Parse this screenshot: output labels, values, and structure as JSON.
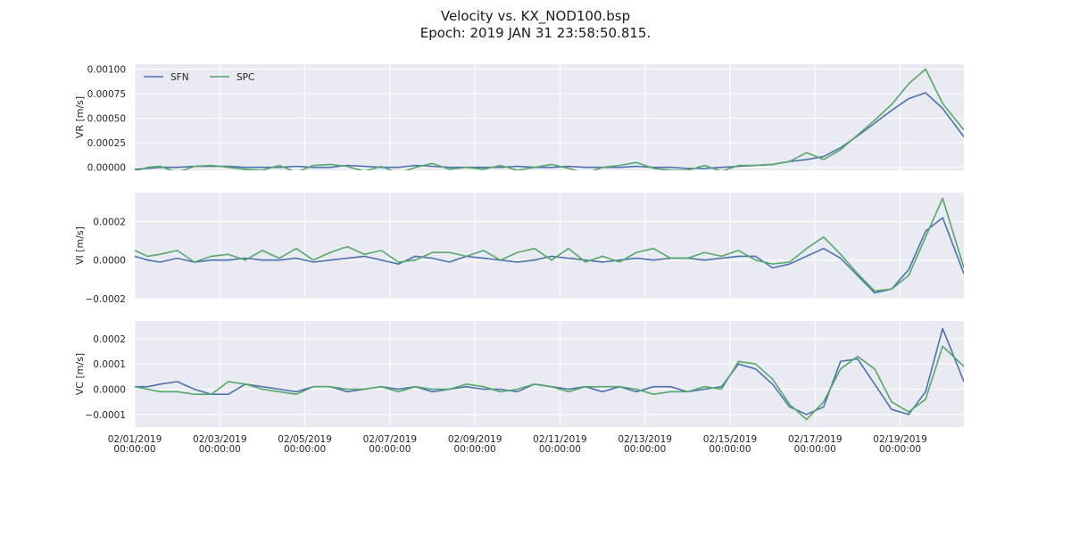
{
  "header": {
    "title": "Velocity vs. KX_NOD100.bsp",
    "subtitle": "Epoch: 2019 JAN 31 23:58:50.815."
  },
  "chart_data": {
    "type": "line",
    "x_unit": "day of February 2019",
    "x_range": [
      1,
      20.5
    ],
    "x_ticks": [
      {
        "x": 1,
        "date": "02/01/2019",
        "time": "00:00:00"
      },
      {
        "x": 3,
        "date": "02/03/2019",
        "time": "00:00:00"
      },
      {
        "x": 5,
        "date": "02/05/2019",
        "time": "00:00:00"
      },
      {
        "x": 7,
        "date": "02/07/2019",
        "time": "00:00:00"
      },
      {
        "x": 9,
        "date": "02/09/2019",
        "time": "00:00:00"
      },
      {
        "x": 11,
        "date": "02/11/2019",
        "time": "00:00:00"
      },
      {
        "x": 13,
        "date": "02/13/2019",
        "time": "00:00:00"
      },
      {
        "x": 15,
        "date": "02/15/2019",
        "time": "00:00:00"
      },
      {
        "x": 17,
        "date": "02/17/2019",
        "time": "00:00:00"
      },
      {
        "x": 19,
        "date": "02/19/2019",
        "time": "00:00:00"
      }
    ],
    "legend": {
      "placement": "upper-left",
      "entries": [
        "SFN",
        "SPC"
      ]
    },
    "grid": true,
    "background": "#eaeaf2",
    "series_colors": {
      "SFN": "#4c72b0",
      "SPC": "#55a868"
    },
    "panels": [
      {
        "ylabel": "VR [m/s]",
        "ylim": [
          -3e-05,
          0.00105
        ],
        "yticks": [
          {
            "v": 0.0,
            "label": "0.00000"
          },
          {
            "v": 0.00025,
            "label": "0.00025"
          },
          {
            "v": 0.0005,
            "label": "0.00050"
          },
          {
            "v": 0.00075,
            "label": "0.00075"
          },
          {
            "v": 0.001,
            "label": "0.00100"
          }
        ],
        "series": [
          {
            "name": "SFN",
            "x": [
              1,
              1.3,
              1.6,
              2,
              2.4,
              2.8,
              3.2,
              3.6,
              4,
              4.4,
              4.8,
              5.2,
              5.6,
              6,
              6.4,
              6.8,
              7.2,
              7.6,
              8,
              8.4,
              8.8,
              9.2,
              9.6,
              10,
              10.4,
              10.8,
              11.2,
              11.6,
              12,
              12.4,
              12.8,
              13.2,
              13.6,
              14,
              14.4,
              14.8,
              15.2,
              15.6,
              16,
              16.4,
              16.8,
              17.2,
              17.6,
              18,
              18.4,
              18.8,
              19.2,
              19.6,
              20,
              20.5
            ],
            "y": [
              -2e-05,
              -1e-05,
              0.0,
              0.0,
              1e-05,
              1e-05,
              1e-05,
              0.0,
              0.0,
              0.0,
              1e-05,
              0.0,
              0.0,
              2e-05,
              1e-05,
              0.0,
              0.0,
              2e-05,
              1e-05,
              0.0,
              0.0,
              0.0,
              0.0,
              1e-05,
              0.0,
              0.0,
              1e-05,
              0.0,
              0.0,
              0.0,
              1e-05,
              0.0,
              0.0,
              -1e-05,
              -1e-05,
              0.0,
              1e-05,
              2e-05,
              3e-05,
              6e-05,
              8e-05,
              0.00011,
              0.0002,
              0.00032,
              0.00045,
              0.00058,
              0.0007,
              0.00076,
              0.0006,
              0.00031
            ]
          },
          {
            "name": "SPC",
            "x": [
              1,
              1.3,
              1.6,
              2,
              2.4,
              2.8,
              3.2,
              3.6,
              4,
              4.4,
              4.8,
              5.2,
              5.6,
              6,
              6.4,
              6.8,
              7.2,
              7.6,
              8,
              8.4,
              8.8,
              9.2,
              9.6,
              10,
              10.4,
              10.8,
              11.2,
              11.6,
              12,
              12.4,
              12.8,
              13.2,
              13.6,
              14,
              14.4,
              14.8,
              15.2,
              15.6,
              16,
              16.4,
              16.8,
              17.2,
              17.6,
              18,
              18.4,
              18.8,
              19.2,
              19.6,
              20,
              20.5
            ],
            "y": [
              -4e-05,
              0.0,
              1e-05,
              -5e-05,
              1e-05,
              2e-05,
              0.0,
              -2e-05,
              -3e-05,
              2e-05,
              -5e-05,
              2e-05,
              3e-05,
              1e-05,
              -4e-05,
              1e-05,
              -6e-05,
              0.0,
              4e-05,
              -2e-05,
              0.0,
              -2e-05,
              2e-05,
              -3e-05,
              0.0,
              3e-05,
              -1e-05,
              -6e-05,
              0.0,
              2e-05,
              5e-05,
              -1e-05,
              -3e-05,
              -3e-05,
              2e-05,
              -4e-05,
              2e-05,
              2e-05,
              3e-05,
              6e-05,
              0.00015,
              8e-05,
              0.00018,
              0.00033,
              0.00048,
              0.00064,
              0.00085,
              0.001,
              0.00065,
              0.00038
            ]
          }
        ]
      },
      {
        "ylabel": "VI [m/s]",
        "ylim": [
          -0.0002,
          0.00035
        ],
        "yticks": [
          {
            "v": -0.0002,
            "label": "−0.0002"
          },
          {
            "v": 0.0,
            "label": "0.0000"
          },
          {
            "v": 0.0002,
            "label": "0.0002"
          }
        ],
        "series": [
          {
            "name": "SFN",
            "x": [
              1,
              1.3,
              1.6,
              2,
              2.4,
              2.8,
              3.2,
              3.6,
              4,
              4.4,
              4.8,
              5.2,
              5.6,
              6,
              6.4,
              6.8,
              7.2,
              7.6,
              8,
              8.4,
              8.8,
              9.2,
              9.6,
              10,
              10.4,
              10.8,
              11.2,
              11.6,
              12,
              12.4,
              12.8,
              13.2,
              13.6,
              14,
              14.4,
              14.8,
              15.2,
              15.6,
              16,
              16.4,
              16.8,
              17.2,
              17.6,
              18,
              18.4,
              18.8,
              19.2,
              19.6,
              20,
              20.5
            ],
            "y": [
              2e-05,
              0.0,
              -1e-05,
              1e-05,
              -1e-05,
              0.0,
              0.0,
              1e-05,
              0.0,
              0.0,
              1e-05,
              -1e-05,
              0.0,
              1e-05,
              2e-05,
              0.0,
              -2e-05,
              2e-05,
              1e-05,
              -1e-05,
              2e-05,
              1e-05,
              0.0,
              -1e-05,
              0.0,
              2e-05,
              1e-05,
              0.0,
              -1e-05,
              0.0,
              1e-05,
              0.0,
              1e-05,
              1e-05,
              0.0,
              1e-05,
              2e-05,
              2e-05,
              -4e-05,
              -2e-05,
              2e-05,
              6e-05,
              1e-05,
              -8e-05,
              -0.00017,
              -0.00015,
              -5e-05,
              0.00015,
              0.00022,
              -7e-05
            ]
          },
          {
            "name": "SPC",
            "x": [
              1,
              1.3,
              1.6,
              2,
              2.4,
              2.8,
              3.2,
              3.6,
              4,
              4.4,
              4.8,
              5.2,
              5.6,
              6,
              6.4,
              6.8,
              7.2,
              7.6,
              8,
              8.4,
              8.8,
              9.2,
              9.6,
              10,
              10.4,
              10.8,
              11.2,
              11.6,
              12,
              12.4,
              12.8,
              13.2,
              13.6,
              14,
              14.4,
              14.8,
              15.2,
              15.6,
              16,
              16.4,
              16.8,
              17.2,
              17.6,
              18,
              18.4,
              18.8,
              19.2,
              19.6,
              20,
              20.5
            ],
            "y": [
              5e-05,
              2e-05,
              3e-05,
              5e-05,
              -1e-05,
              2e-05,
              3e-05,
              0.0,
              5e-05,
              1e-05,
              6e-05,
              0.0,
              4e-05,
              7e-05,
              3e-05,
              5e-05,
              -1e-05,
              0.0,
              4e-05,
              4e-05,
              2e-05,
              5e-05,
              0.0,
              4e-05,
              6e-05,
              0.0,
              6e-05,
              -1e-05,
              2e-05,
              -1e-05,
              4e-05,
              6e-05,
              1e-05,
              1e-05,
              4e-05,
              2e-05,
              5e-05,
              0.0,
              -2e-05,
              -1e-05,
              6e-05,
              0.00012,
              3e-05,
              -7e-05,
              -0.00016,
              -0.00015,
              -8e-05,
              0.00012,
              0.00032,
              -4e-05
            ]
          }
        ]
      },
      {
        "ylabel": "VC [m/s]",
        "ylim": [
          -0.00015,
          0.00027
        ],
        "yticks": [
          {
            "v": -0.0001,
            "label": "−0.0001"
          },
          {
            "v": 0.0,
            "label": "0.0000"
          },
          {
            "v": 0.0001,
            "label": "0.0001"
          },
          {
            "v": 0.0002,
            "label": "0.0002"
          }
        ],
        "series": [
          {
            "name": "SFN",
            "x": [
              1,
              1.3,
              1.6,
              2,
              2.4,
              2.8,
              3.2,
              3.6,
              4,
              4.4,
              4.8,
              5.2,
              5.6,
              6,
              6.4,
              6.8,
              7.2,
              7.6,
              8,
              8.4,
              8.8,
              9.2,
              9.6,
              10,
              10.4,
              10.8,
              11.2,
              11.6,
              12,
              12.4,
              12.8,
              13.2,
              13.6,
              14,
              14.4,
              14.8,
              15.2,
              15.6,
              16,
              16.4,
              16.8,
              17.2,
              17.6,
              18,
              18.4,
              18.8,
              19.2,
              19.6,
              20,
              20.5
            ],
            "y": [
              1e-05,
              1e-05,
              2e-05,
              3e-05,
              0.0,
              -2e-05,
              -2e-05,
              2e-05,
              1e-05,
              0.0,
              -1e-05,
              1e-05,
              1e-05,
              -1e-05,
              0.0,
              1e-05,
              0.0,
              1e-05,
              -1e-05,
              0.0,
              1e-05,
              0.0,
              0.0,
              -1e-05,
              2e-05,
              1e-05,
              0.0,
              1e-05,
              -1e-05,
              1e-05,
              -1e-05,
              1e-05,
              1e-05,
              -1e-05,
              0.0,
              1e-05,
              0.0001,
              8e-05,
              2e-05,
              -7e-05,
              -0.0001,
              -7e-05,
              0.00011,
              0.00012,
              2e-05,
              -8e-05,
              -0.0001,
              -1e-05,
              0.00024,
              3e-05
            ]
          },
          {
            "name": "SPC",
            "x": [
              1,
              1.3,
              1.6,
              2,
              2.4,
              2.8,
              3.2,
              3.6,
              4,
              4.4,
              4.8,
              5.2,
              5.6,
              6,
              6.4,
              6.8,
              7.2,
              7.6,
              8,
              8.4,
              8.8,
              9.2,
              9.6,
              10,
              10.4,
              10.8,
              11.2,
              11.6,
              12,
              12.4,
              12.8,
              13.2,
              13.6,
              14,
              14.4,
              14.8,
              15.2,
              15.6,
              16,
              16.4,
              16.8,
              17.2,
              17.6,
              18,
              18.4,
              18.8,
              19.2,
              19.6,
              20,
              20.5
            ],
            "y": [
              1e-05,
              0.0,
              -1e-05,
              -1e-05,
              -2e-05,
              -2e-05,
              3e-05,
              2e-05,
              0.0,
              -1e-05,
              -2e-05,
              1e-05,
              1e-05,
              0.0,
              0.0,
              1e-05,
              -1e-05,
              1e-05,
              0.0,
              0.0,
              2e-05,
              1e-05,
              -1e-05,
              0.0,
              2e-05,
              1e-05,
              -1e-05,
              1e-05,
              1e-05,
              1e-05,
              0.0,
              -2e-05,
              -1e-05,
              -1e-05,
              1e-05,
              0.0,
              0.00011,
              0.0001,
              4e-05,
              -6e-05,
              -0.00012,
              -5e-05,
              8e-05,
              0.00013,
              8e-05,
              -5e-05,
              -9e-05,
              -4e-05,
              0.00017,
              9e-05
            ]
          }
        ]
      }
    ]
  }
}
